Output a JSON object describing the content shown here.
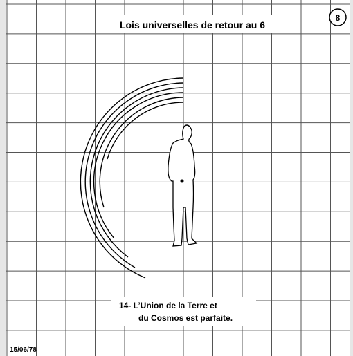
{
  "header": {
    "title": "Lois universelles de retour au 6",
    "page_number": "8"
  },
  "caption": {
    "lines": [
      "14- L’Union de la Terre et",
      "du Cosmos est parfaite."
    ]
  },
  "footer": {
    "date": "15/06/78"
  }
}
